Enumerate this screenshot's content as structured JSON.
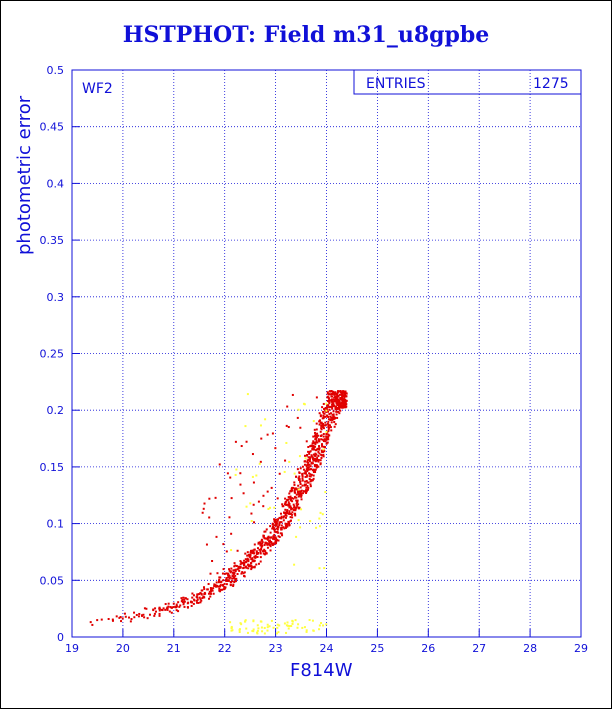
{
  "title": "HSTPHOT: Field m31_u8gpbe",
  "chart_data": {
    "type": "scatter",
    "title": "HSTPHOT: Field m31_u8gpbe",
    "xlabel": "F814W",
    "ylabel": "photometric error",
    "xlim": [
      19,
      29
    ],
    "ylim": [
      0,
      0.5
    ],
    "x_ticks": [
      "19",
      "20",
      "21",
      "22",
      "23",
      "24",
      "25",
      "26",
      "27",
      "28",
      "29"
    ],
    "y_ticks": [
      "0",
      "0.05",
      "0.1",
      "0.15",
      "0.2",
      "0.25",
      "0.3",
      "0.35",
      "0.4",
      "0.45",
      "0.5"
    ],
    "grid": true,
    "panel_label": "WF2",
    "stats_box": {
      "label": "ENTRIES",
      "value": "1275"
    },
    "colors": {
      "text": "#1010d8",
      "main_series": "#e00000",
      "secondary_series": "#ffff40"
    },
    "series": [
      {
        "color": "#e00000",
        "description_points": [
          [
            19.3,
            0.008
          ],
          [
            19.5,
            0.012
          ],
          [
            20.0,
            0.014
          ],
          [
            20.5,
            0.016
          ],
          [
            21.0,
            0.02
          ],
          [
            21.5,
            0.026
          ],
          [
            22.0,
            0.033
          ],
          [
            22.5,
            0.045
          ],
          [
            23.0,
            0.065
          ],
          [
            23.3,
            0.085
          ],
          [
            23.6,
            0.11
          ],
          [
            23.8,
            0.14
          ],
          [
            24.0,
            0.17
          ],
          [
            24.2,
            0.2
          ],
          [
            24.4,
            0.215
          ]
        ]
      },
      {
        "color": "#ffff40",
        "description_points": [
          [
            22.2,
            0.004
          ],
          [
            22.5,
            0.005
          ],
          [
            22.8,
            0.006
          ],
          [
            23.2,
            0.007
          ],
          [
            23.6,
            0.01
          ],
          [
            23.9,
            0.014
          ],
          [
            22.5,
            0.16
          ],
          [
            22.7,
            0.17
          ],
          [
            23.2,
            0.21
          ],
          [
            22.3,
            0.12
          ],
          [
            22.8,
            0.14
          ]
        ]
      }
    ]
  }
}
